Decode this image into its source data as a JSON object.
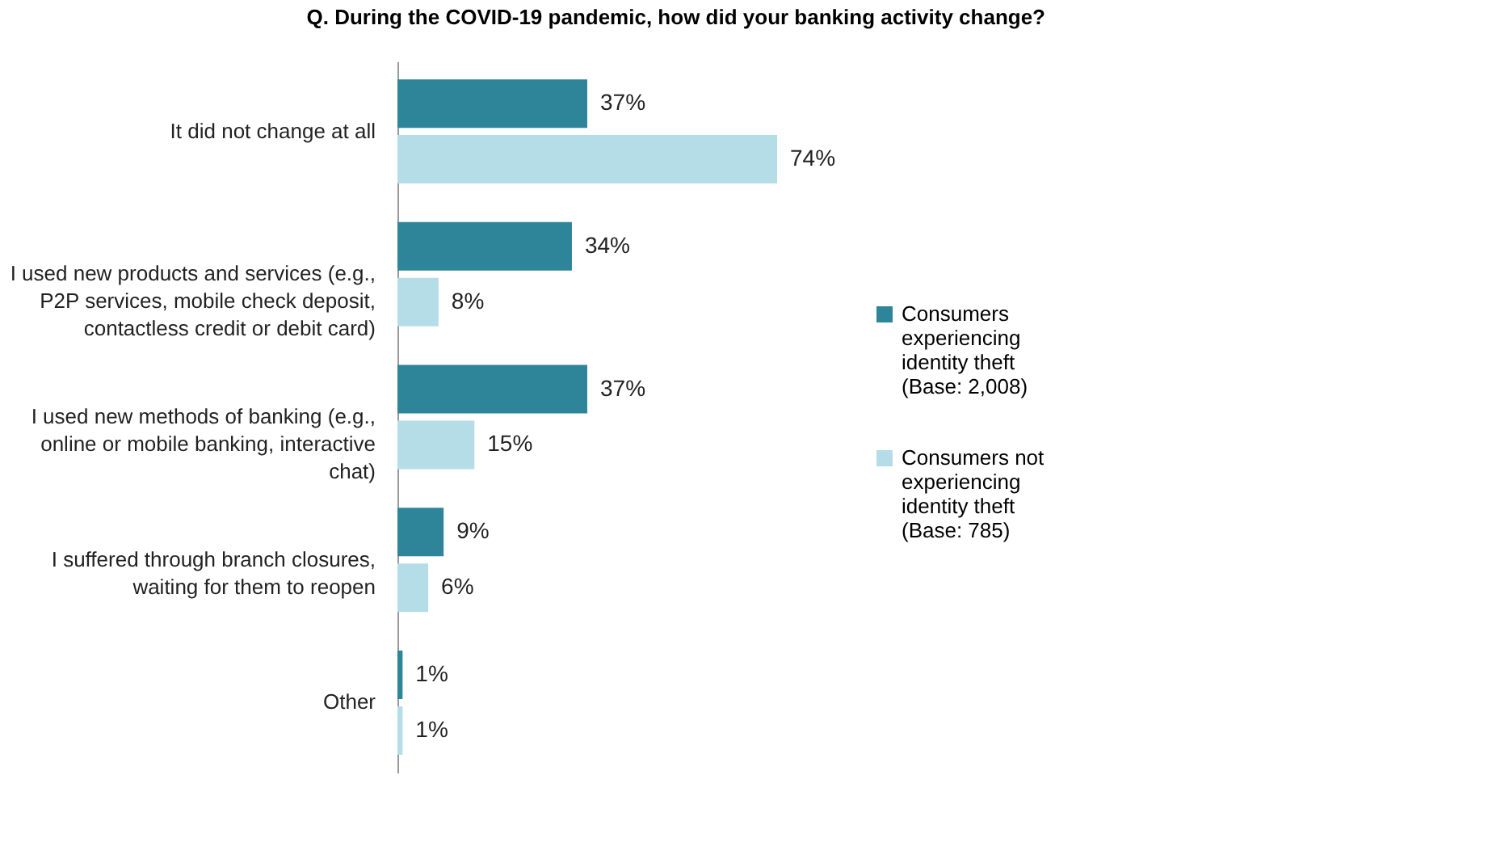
{
  "chart_data": {
    "type": "bar",
    "orientation": "horizontal",
    "title": "Q. During the COVID-19 pandemic, how did your banking activity change?",
    "categories": [
      "It did not change at all",
      "I used new products and services (e.g., P2P services, mobile check deposit, contactless credit or debit card)",
      "I used new methods of banking (e.g., online or mobile banking, interactive chat)",
      "I suffered through branch closures, waiting for them to reopen",
      "Other"
    ],
    "series": [
      {
        "name": "Consumers experiencing identity theft (Base: 2,008)",
        "color": "#2e8499",
        "values": [
          37,
          34,
          37,
          9,
          1
        ],
        "value_labels": [
          "37%",
          "34%",
          "37%",
          "9%",
          "1%"
        ]
      },
      {
        "name": "Consumers not experiencing identity theft (Base: 785)",
        "color": "#b5dde8",
        "values": [
          74,
          8,
          15,
          6,
          1
        ],
        "value_labels": [
          "74%",
          "8%",
          "15%",
          "6%",
          "1%"
        ]
      }
    ],
    "legend": "right",
    "tick_labels": "y"
  }
}
